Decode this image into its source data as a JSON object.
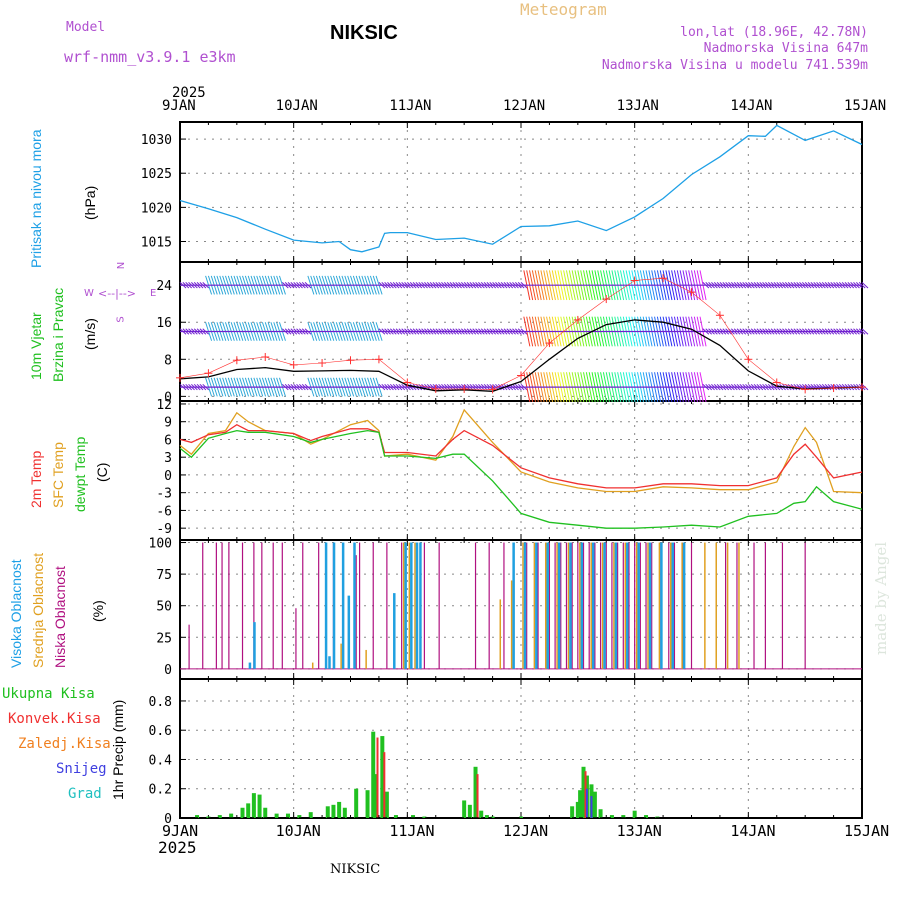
{
  "header": {
    "model_label": "Model",
    "model_name": "wrf-nmm_v3.9.1 e3km",
    "station": "NIKSIC",
    "meteogram_label": "Meteogram",
    "lonlat": "lon,lat (18.96E, 42.78N)",
    "elevation": "Nadmorska Visina 647m",
    "model_elevation": "Nadmorska Visina u modelu 741.539m"
  },
  "axis_top": {
    "year": "2025",
    "dates": [
      "9JAN",
      "10JAN",
      "11JAN",
      "12JAN",
      "13JAN",
      "14JAN",
      "15JAN"
    ]
  },
  "axis_bottom": {
    "year": "2025",
    "dates": [
      "9JAN",
      "10JAN",
      "11JAN",
      "12JAN",
      "13JAN",
      "14JAN",
      "15JAN"
    ]
  },
  "footer_station": "NIKSIC",
  "watermark": "made by Angel",
  "panels": {
    "pressure": {
      "label": "Pritisak na nivou mora",
      "unit": "(hPa)"
    },
    "wind": {
      "label1": "10m Vjetar",
      "label2": "Brzina i Pravac",
      "unit": "(m/s)",
      "compass": {
        "n": "N",
        "s": "S",
        "w": "W",
        "e": "E"
      }
    },
    "temp": {
      "label1": "2m Temp",
      "label2": "SFC Temp",
      "label3": "dewpt Temp",
      "unit": "(C)"
    },
    "cloud": {
      "label1": "Visoka Oblacnost",
      "label2": "Srednja Oblacnost",
      "label3": "Niska Oblacnost",
      "unit": "(%)"
    },
    "precip": {
      "unit": "1hr Precip (mm)",
      "legend": [
        "Ukupna Kisa",
        "Konvek.Kisa",
        "Zaledj.Kisa",
        "Snijeg",
        "Grad"
      ]
    }
  },
  "colors": {
    "pressure": "#1ea0e6",
    "wind_speed": "#000000",
    "gust": "#ff3030",
    "t2m": "#f03030",
    "sfc": "#e0a020",
    "dewpt": "#20c020",
    "high_cloud": "#20a0e0",
    "mid_cloud": "#e0a020",
    "low_cloud": "#b01080",
    "rain": "#20c020",
    "conv": "#f03030",
    "freezing": "#f08020",
    "snow": "#4040e0",
    "hail": "#20c0c0"
  },
  "chart_data": [
    {
      "type": "line",
      "id": "pressure",
      "title": "Pritisak na nivou mora",
      "ylabel": "(hPa)",
      "x_days": [
        0,
        0.25,
        0.5,
        0.75,
        1,
        1.25,
        1.4,
        1.5,
        1.6,
        1.75,
        1.8,
        1.85,
        2,
        2.25,
        2.5,
        2.75,
        3,
        3.25,
        3.5,
        3.75,
        4,
        4.25,
        4.5,
        4.75,
        5,
        5.15,
        5.25,
        5.5,
        5.75,
        6
      ],
      "values": [
        1021,
        1019.8,
        1018.5,
        1016.8,
        1015.2,
        1014.8,
        1015.0,
        1013.8,
        1013.5,
        1014.2,
        1016.2,
        1016.3,
        1016.3,
        1015.3,
        1015.5,
        1014.6,
        1017.2,
        1017.3,
        1018.0,
        1016.6,
        1018.6,
        1021.3,
        1024.8,
        1027.4,
        1030.5,
        1030.4,
        1032.0,
        1029.8,
        1031.2,
        1029.2
      ],
      "yticks": [
        1015,
        1020,
        1025,
        1030
      ],
      "ylim": [
        1012,
        1032.5
      ]
    },
    {
      "type": "line",
      "id": "wind",
      "title": "10m Vjetar Brzina i Pravac",
      "ylabel": "(m/s)",
      "x_days": [
        0,
        0.25,
        0.5,
        0.75,
        1,
        1.25,
        1.5,
        1.75,
        2,
        2.25,
        2.5,
        2.75,
        3,
        3.25,
        3.5,
        3.75,
        4,
        4.25,
        4.5,
        4.75,
        5,
        5.25,
        5.5,
        5.75,
        6
      ],
      "speed": [
        3.8,
        4.2,
        5.8,
        6.2,
        5.4,
        5.5,
        5.6,
        5.4,
        2.4,
        1.2,
        1.4,
        1.1,
        3.2,
        8,
        12.5,
        15.5,
        16.5,
        16,
        14.5,
        11,
        5.5,
        2.2,
        1.6,
        1.8,
        2.0
      ],
      "gust": [
        4.0,
        5.0,
        7.8,
        8.5,
        6.8,
        7.2,
        7.8,
        8.0,
        3.0,
        1.6,
        1.6,
        1.5,
        4.5,
        11.5,
        16.5,
        21,
        25,
        25.5,
        22.5,
        17.5,
        8,
        3,
        1.5,
        1.8,
        2.0
      ],
      "yticks": [
        0,
        8,
        16,
        24
      ],
      "ylim": [
        -1,
        29
      ]
    },
    {
      "type": "line",
      "id": "temperature",
      "title": "2m Temp / SFC Temp / dewpt Temp",
      "ylabel": "(C)",
      "x_days": [
        0,
        0.1,
        0.25,
        0.4,
        0.5,
        0.6,
        0.75,
        1,
        1.15,
        1.25,
        1.5,
        1.65,
        1.75,
        1.8,
        2,
        2.25,
        2.4,
        2.5,
        2.75,
        3,
        3.25,
        3.5,
        3.75,
        4,
        4.25,
        4.5,
        4.75,
        5,
        5.25,
        5.4,
        5.5,
        5.6,
        5.75,
        6
      ],
      "t2m": [
        6,
        5.5,
        6.8,
        7.2,
        8.5,
        7.5,
        7.5,
        7.0,
        5.8,
        6.5,
        7.8,
        7.8,
        7.2,
        3.8,
        3.8,
        3.2,
        6.0,
        7.5,
        5.0,
        1.2,
        -0.5,
        -1.5,
        -2.2,
        -2.2,
        -1.5,
        -1.5,
        -1.8,
        -1.8,
        -0.5,
        3.5,
        5.2,
        3.0,
        -0.5,
        0.5
      ],
      "sfc": [
        5,
        3.5,
        7.0,
        7.5,
        10.5,
        9.0,
        7.5,
        7.0,
        5.2,
        6.0,
        8.5,
        9.2,
        7.5,
        3.2,
        3.5,
        2.5,
        6.5,
        11.0,
        5.5,
        0.5,
        -1.2,
        -2.2,
        -2.8,
        -2.8,
        -2.0,
        -2.2,
        -2.5,
        -2.5,
        -1.2,
        4.8,
        8.0,
        5.5,
        -2.8,
        -3.0
      ],
      "dewpt": [
        4.5,
        3.0,
        6.2,
        7.0,
        7.5,
        7.2,
        7.2,
        6.5,
        5.5,
        6.0,
        7.0,
        7.5,
        7.2,
        3.2,
        3.2,
        2.8,
        3.5,
        3.5,
        -1.0,
        -6.5,
        -8.0,
        -8.5,
        -9.0,
        -9.0,
        -8.8,
        -8.5,
        -8.8,
        -7.0,
        -6.5,
        -4.8,
        -4.5,
        -2.0,
        -4.5,
        -5.8
      ],
      "yticks": [
        -9,
        -6,
        -3,
        0,
        3,
        6,
        9,
        12
      ],
      "ylim": [
        -11,
        12.5
      ]
    },
    {
      "type": "bar",
      "id": "cloud",
      "title": "Visoka / Srednja / Niska Oblacnost",
      "ylabel": "(%)",
      "low_cloud_days": [
        0.08,
        0.2,
        0.32,
        0.37,
        0.43,
        0.55,
        0.65,
        0.72,
        0.82,
        0.9,
        1.02,
        1.08,
        1.22,
        1.35,
        1.55,
        1.58,
        1.7,
        1.82,
        1.95,
        2.15,
        2.28,
        2.6,
        2.72,
        2.85,
        3.05,
        3.15,
        3.25,
        3.3,
        3.35,
        3.4,
        3.45,
        3.5,
        3.55,
        3.6,
        3.65,
        3.7,
        3.75,
        3.8,
        3.85,
        3.9,
        3.95,
        4.0,
        4.05,
        4.1,
        4.15,
        4.22,
        4.3,
        4.35,
        4.42,
        4.5,
        4.8,
        4.9,
        5.05,
        5.15,
        5.3,
        5.5
      ],
      "low_cloud_pct": [
        35,
        100,
        100,
        100,
        100,
        100,
        100,
        100,
        100,
        100,
        48,
        100,
        100,
        100,
        90,
        100,
        100,
        100,
        100,
        100,
        100,
        100,
        100,
        100,
        100,
        100,
        100,
        100,
        100,
        100,
        100,
        100,
        100,
        100,
        100,
        100,
        100,
        100,
        100,
        100,
        100,
        100,
        100,
        100,
        100,
        100,
        100,
        100,
        100,
        100,
        100,
        100,
        100,
        100,
        100,
        100
      ],
      "mid_cloud_days": [
        1.15,
        1.4,
        1.62,
        1.95,
        2.0,
        2.05,
        2.1,
        2.8,
        2.9,
        3.0,
        3.1,
        3.2,
        3.3,
        3.4,
        3.5,
        3.6,
        3.7,
        3.8,
        3.9,
        4.0,
        4.1,
        4.2,
        4.3,
        4.4,
        4.6,
        4.7,
        4.8,
        4.9
      ],
      "mid_cloud_pct": [
        5,
        20,
        15,
        100,
        100,
        100,
        100,
        55,
        70,
        100,
        100,
        100,
        100,
        100,
        100,
        100,
        100,
        100,
        100,
        100,
        100,
        100,
        100,
        100,
        100,
        100,
        100,
        100
      ],
      "high_cloud_days": [
        0.58,
        0.62,
        1.25,
        1.28,
        1.32,
        1.4,
        1.45,
        1.5,
        1.85,
        1.95,
        2.0,
        2.05,
        2.08,
        2.9,
        3.0,
        3.1,
        3.2,
        3.3,
        3.4,
        3.5,
        3.6,
        3.7,
        3.8,
        3.9,
        4.0,
        4.1,
        4.2,
        4.3,
        4.4
      ],
      "high_cloud_pct": [
        5,
        37,
        100,
        10,
        100,
        100,
        58,
        100,
        60,
        100,
        100,
        100,
        100,
        100,
        100,
        100,
        100,
        100,
        100,
        100,
        100,
        100,
        100,
        100,
        100,
        100,
        100,
        100,
        100
      ],
      "yticks": [
        0,
        25,
        50,
        75,
        100
      ],
      "ylim": [
        -8,
        102
      ]
    },
    {
      "type": "bar",
      "id": "precip",
      "title": "1hr Precip (mm)",
      "ylabel": "1hr Precip (mm)",
      "rain_days": [
        0.15,
        0.25,
        0.35,
        0.45,
        0.55,
        0.6,
        0.65,
        0.7,
        0.75,
        0.85,
        0.95,
        1.05,
        1.15,
        1.3,
        1.35,
        1.4,
        1.45,
        1.55,
        1.65,
        1.7,
        1.72,
        1.78,
        1.82,
        1.9,
        2.05,
        2.15,
        2.5,
        2.55,
        2.6,
        2.65,
        2.7,
        2.75,
        3.0,
        3.45,
        3.5,
        3.52,
        3.55,
        3.58,
        3.62,
        3.65,
        3.7,
        3.8,
        3.9,
        4.0,
        4.1,
        4.2
      ],
      "rain_mm": [
        0.02,
        0.01,
        0.02,
        0.03,
        0.07,
        0.1,
        0.17,
        0.16,
        0.07,
        0.03,
        0.03,
        0.02,
        0.04,
        0.08,
        0.09,
        0.11,
        0.07,
        0.2,
        0.19,
        0.59,
        0.3,
        0.56,
        0.18,
        0.02,
        0.02,
        0.01,
        0.12,
        0.09,
        0.35,
        0.05,
        0.02,
        0.01,
        0.01,
        0.08,
        0.11,
        0.19,
        0.35,
        0.29,
        0.23,
        0.18,
        0.06,
        0.02,
        0.02,
        0.05,
        0.02,
        0.01
      ],
      "conv_days": [
        1.72,
        1.78,
        2.6,
        3.55
      ],
      "conv_mm": [
        0.55,
        0.45,
        0.3,
        0.32
      ],
      "snow_days": [
        3.58,
        3.62
      ],
      "snow_mm": [
        0.2,
        0.15
      ],
      "yticks": [
        0,
        0.2,
        0.4,
        0.6,
        0.8
      ],
      "ylim": [
        0,
        0.95
      ]
    }
  ]
}
